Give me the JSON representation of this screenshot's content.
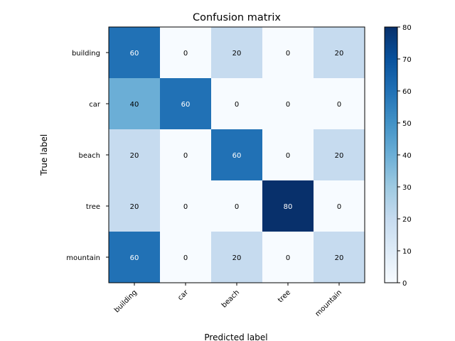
{
  "chart_data": {
    "type": "heatmap",
    "title": "Confusion matrix",
    "xlabel": "Predicted label",
    "ylabel": "True label",
    "x_categories": [
      "building",
      "car",
      "beach",
      "tree",
      "mountain"
    ],
    "y_categories": [
      "building",
      "car",
      "beach",
      "tree",
      "mountain"
    ],
    "values": [
      [
        60,
        0,
        20,
        0,
        20
      ],
      [
        40,
        60,
        0,
        0,
        0
      ],
      [
        20,
        0,
        60,
        0,
        20
      ],
      [
        20,
        0,
        0,
        80,
        0
      ],
      [
        60,
        0,
        20,
        0,
        20
      ]
    ],
    "colormap": "Blues",
    "color_range": [
      0,
      80
    ],
    "colorbar_ticks": [
      0,
      10,
      20,
      30,
      40,
      50,
      60,
      70,
      80
    ],
    "x_tick_rotation_deg": 45,
    "grid": false
  }
}
